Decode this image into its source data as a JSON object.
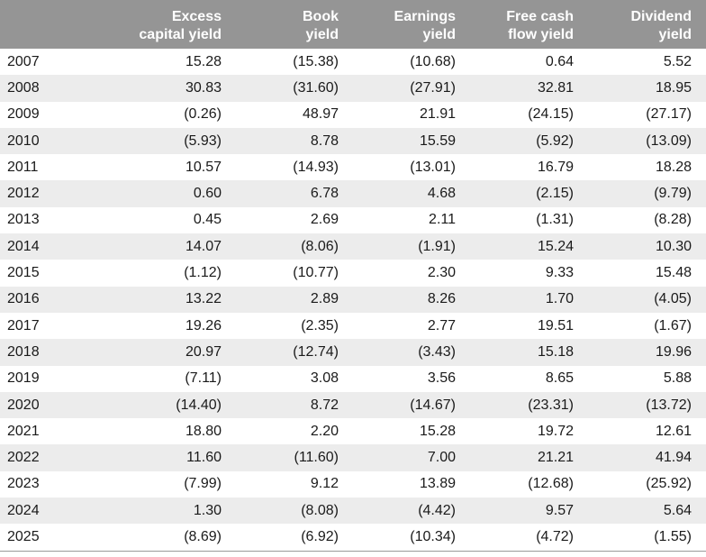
{
  "chart_data": {
    "type": "table",
    "columns": [
      {
        "line1": "",
        "line2": ""
      },
      {
        "line1": "Excess",
        "line2": "capital yield"
      },
      {
        "line1": "Book",
        "line2": "yield"
      },
      {
        "line1": "Earnings",
        "line2": "yield"
      },
      {
        "line1": "Free cash",
        "line2": "flow yield"
      },
      {
        "line1": "Dividend",
        "line2": "yield"
      }
    ],
    "rows": [
      [
        "2007",
        "15.28",
        "(15.38)",
        "(10.68)",
        "0.64",
        "5.52"
      ],
      [
        "2008",
        "30.83",
        "(31.60)",
        "(27.91)",
        "32.81",
        "18.95"
      ],
      [
        "2009",
        "(0.26)",
        "48.97",
        "21.91",
        "(24.15)",
        "(27.17)"
      ],
      [
        "2010",
        "(5.93)",
        "8.78",
        "15.59",
        "(5.92)",
        "(13.09)"
      ],
      [
        "2011",
        "10.57",
        "(14.93)",
        "(13.01)",
        "16.79",
        "18.28"
      ],
      [
        "2012",
        "0.60",
        "6.78",
        "4.68",
        "(2.15)",
        "(9.79)"
      ],
      [
        "2013",
        "0.45",
        "2.69",
        "2.11",
        "(1.31)",
        "(8.28)"
      ],
      [
        "2014",
        "14.07",
        "(8.06)",
        "(1.91)",
        "15.24",
        "10.30"
      ],
      [
        "2015",
        "(1.12)",
        "(10.77)",
        "2.30",
        "9.33",
        "15.48"
      ],
      [
        "2016",
        "13.22",
        "2.89",
        "8.26",
        "1.70",
        "(4.05)"
      ],
      [
        "2017",
        "19.26",
        "(2.35)",
        "2.77",
        "19.51",
        "(1.67)"
      ],
      [
        "2018",
        "20.97",
        "(12.74)",
        "(3.43)",
        "15.18",
        "19.96"
      ],
      [
        "2019",
        "(7.11)",
        "3.08",
        "3.56",
        "8.65",
        "5.88"
      ],
      [
        "2020",
        "(14.40)",
        "8.72",
        "(14.67)",
        "(23.31)",
        "(13.72)"
      ],
      [
        "2021",
        "18.80",
        "2.20",
        "15.28",
        "19.72",
        "12.61"
      ],
      [
        "2022",
        "11.60",
        "(11.60)",
        "7.00",
        "21.21",
        "41.94"
      ],
      [
        "2023",
        "(7.99)",
        "9.12",
        "13.89",
        "(12.68)",
        "(25.92)"
      ],
      [
        "2024",
        "1.30",
        "(8.08)",
        "(4.42)",
        "9.57",
        "5.64"
      ],
      [
        "2025",
        "(8.69)",
        "(6.92)",
        "(10.34)",
        "(4.72)",
        "(1.55)"
      ]
    ]
  },
  "colors": {
    "header_bg": "#959595",
    "header_text": "#ffffff",
    "stripe_bg": "#ececec",
    "body_text": "#1a1a1a"
  }
}
